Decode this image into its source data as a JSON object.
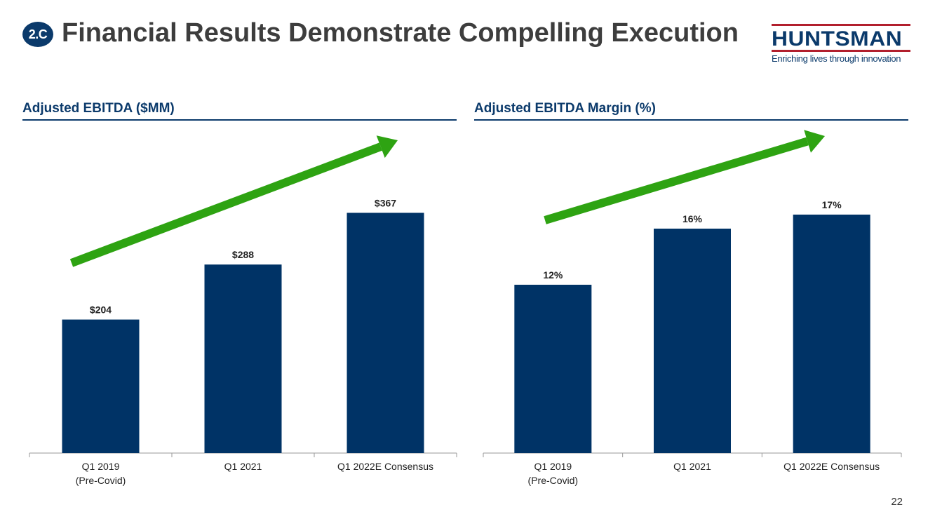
{
  "header": {
    "badge": "2.C",
    "title": "Financial Results Demonstrate Compelling Execution"
  },
  "logo": {
    "name": "HUNTSMAN",
    "tagline": "Enriching lives through innovation"
  },
  "colors": {
    "bar": "#003366",
    "arrow": "#2ea312",
    "accent": "#0b3a6b",
    "logo_rule": "#b21f2d"
  },
  "chart_data": [
    {
      "type": "bar",
      "title": "Adjusted EBITDA ($MM)",
      "categories": [
        "Q1 2019\n(Pre-Covid)",
        "Q1 2021",
        "Q1 2022E Consensus"
      ],
      "values": [
        204,
        288,
        367
      ],
      "labels": [
        "$204",
        "$288",
        "$367"
      ],
      "ylim": [
        0,
        450
      ],
      "xlabel": "",
      "ylabel": "",
      "annotation": "upward trend arrow"
    },
    {
      "type": "bar",
      "title": "Adjusted EBITDA Margin (%)",
      "categories": [
        "Q1 2019\n(Pre-Covid)",
        "Q1 2021",
        "Q1 2022E Consensus"
      ],
      "values": [
        12,
        16,
        17
      ],
      "labels": [
        "12%",
        "16%",
        "17%"
      ],
      "ylim": [
        0,
        21
      ],
      "xlabel": "",
      "ylabel": "",
      "annotation": "upward trend arrow"
    }
  ],
  "footer": {
    "page_number": "22"
  }
}
